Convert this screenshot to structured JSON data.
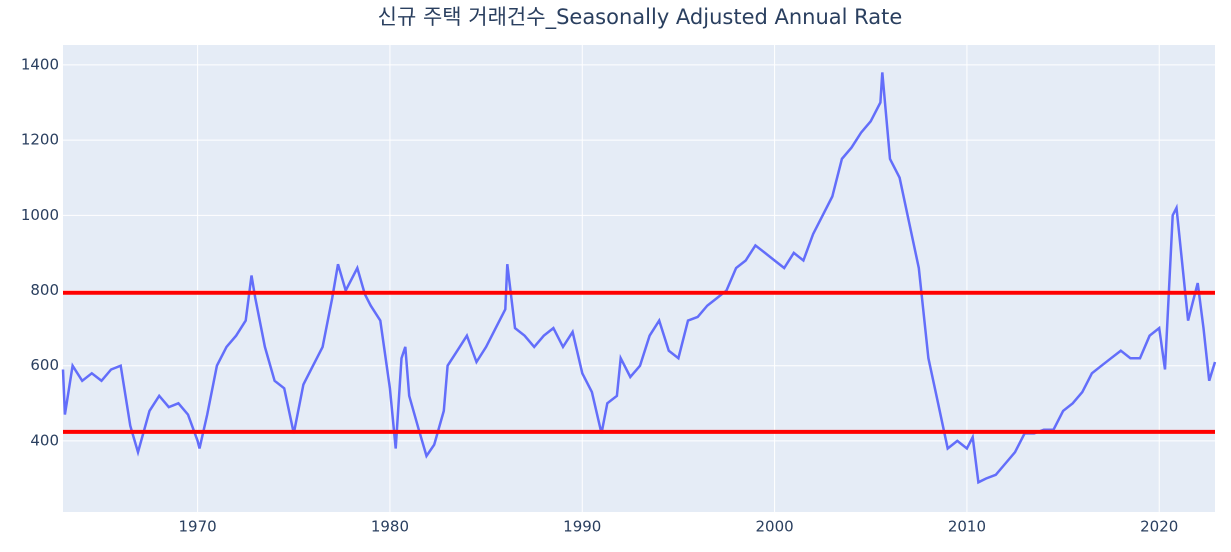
{
  "chart_data": {
    "type": "line",
    "title": "신규 주택 거래건수_Seasonally Adjusted Annual Rate",
    "x": [
      1963.0,
      1963.1,
      1963.5,
      1964,
      1964.5,
      1965,
      1965.5,
      1966,
      1966.5,
      1966.9,
      1967.5,
      1968,
      1968.5,
      1969,
      1969.5,
      1970,
      1970.1,
      1970.5,
      1971,
      1971.5,
      1972,
      1972.5,
      1972.8,
      1973,
      1973.5,
      1974,
      1974.5,
      1975,
      1975.5,
      1976,
      1976.5,
      1977,
      1977.3,
      1977.7,
      1978,
      1978.3,
      1978.7,
      1979,
      1979.5,
      1980,
      1980.3,
      1980.6,
      1980.8,
      1981,
      1981.5,
      1981.9,
      1982.3,
      1982.8,
      1983,
      1983.5,
      1984,
      1984.5,
      1985,
      1985.5,
      1986,
      1986.1,
      1986.5,
      1987,
      1987.5,
      1988,
      1988.5,
      1989,
      1989.5,
      1990,
      1990.5,
      1991,
      1991.3,
      1991.8,
      1992,
      1992.5,
      1993,
      1993.5,
      1994,
      1994.5,
      1995,
      1995.5,
      1996,
      1996.5,
      1997,
      1997.5,
      1998,
      1998.5,
      1999,
      1999.5,
      2000,
      2000.5,
      2001,
      2001.5,
      2002,
      2002.5,
      2003,
      2003.5,
      2004,
      2004.5,
      2005,
      2005.5,
      2005.6,
      2006,
      2006.5,
      2007,
      2007.5,
      2008,
      2008.5,
      2009,
      2009.5,
      2010,
      2010.3,
      2010.6,
      2011,
      2011.5,
      2012,
      2012.5,
      2013,
      2013.5,
      2014,
      2014.5,
      2015,
      2015.5,
      2016,
      2016.5,
      2017,
      2017.5,
      2018,
      2018.5,
      2019,
      2019.5,
      2020,
      2020.3,
      2020.7,
      2020.9,
      2021.2,
      2021.5,
      2022,
      2022.3,
      2022.6,
      2022.9
    ],
    "series": [
      {
        "color": "#636efa",
        "values": [
          590,
          470,
          600,
          560,
          580,
          560,
          590,
          600,
          440,
          370,
          480,
          520,
          490,
          500,
          470,
          400,
          380,
          470,
          600,
          650,
          680,
          720,
          840,
          780,
          650,
          560,
          540,
          420,
          550,
          600,
          650,
          780,
          870,
          800,
          830,
          860,
          790,
          760,
          720,
          540,
          380,
          620,
          650,
          520,
          430,
          360,
          390,
          480,
          600,
          640,
          680,
          610,
          650,
          700,
          750,
          870,
          700,
          680,
          650,
          680,
          700,
          650,
          690,
          580,
          530,
          420,
          500,
          520,
          620,
          570,
          600,
          680,
          720,
          640,
          620,
          720,
          730,
          760,
          780,
          800,
          860,
          880,
          920,
          900,
          880,
          860,
          900,
          880,
          950,
          1000,
          1050,
          1150,
          1180,
          1220,
          1250,
          1300,
          1380,
          1150,
          1100,
          980,
          860,
          620,
          500,
          380,
          400,
          380,
          410,
          290,
          300,
          310,
          340,
          370,
          420,
          420,
          430,
          430,
          480,
          500,
          530,
          580,
          600,
          620,
          640,
          620,
          620,
          680,
          700,
          590,
          1000,
          1020,
          870,
          720,
          820,
          700,
          560,
          610
        ]
      }
    ],
    "hlines": [
      {
        "value": 794,
        "color": "#ff0000"
      },
      {
        "value": 424,
        "color": "#ff0000"
      }
    ],
    "xlim": [
      1963,
      2022.9
    ],
    "xticks": [
      1970,
      1980,
      1990,
      2000,
      2010,
      2020
    ],
    "ylim": [
      211,
      1453
    ],
    "yticks": [
      400,
      600,
      800,
      1000,
      1200,
      1400
    ],
    "grid": true
  }
}
